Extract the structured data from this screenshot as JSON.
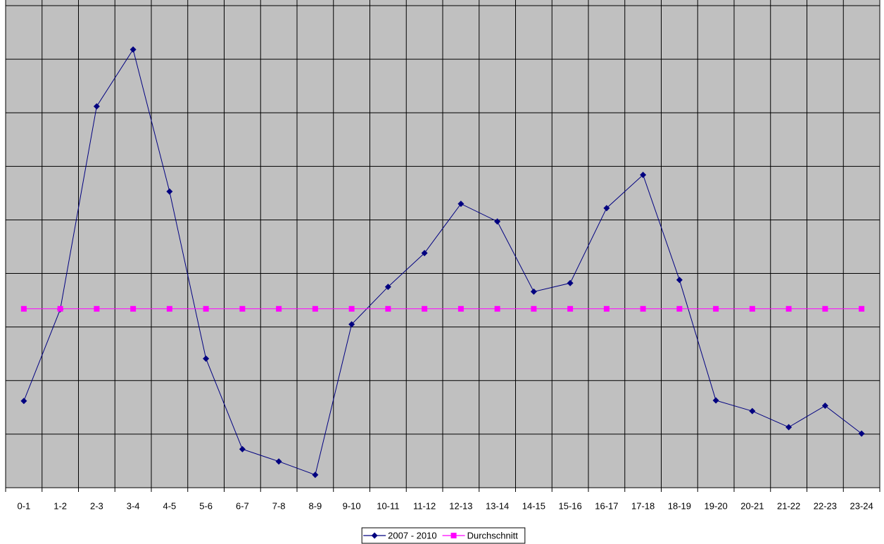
{
  "chart_data": {
    "type": "line",
    "categories": [
      "0-1",
      "1-2",
      "2-3",
      "3-4",
      "4-5",
      "5-6",
      "6-7",
      "7-8",
      "8-9",
      "9-10",
      "10-11",
      "11-12",
      "12-13",
      "13-14",
      "14-15",
      "15-16",
      "16-17",
      "17-18",
      "18-19",
      "19-20",
      "20-21",
      "21-22",
      "22-23",
      "23-24"
    ],
    "series": [
      {
        "name": "2007 - 2010",
        "color": "#000080",
        "marker": "diamond",
        "values": [
          1.62,
          3.33,
          7.12,
          8.18,
          5.53,
          2.41,
          0.72,
          0.49,
          0.24,
          3.05,
          3.75,
          4.38,
          5.3,
          4.97,
          3.66,
          3.82,
          5.22,
          5.84,
          3.88,
          1.63,
          1.43,
          1.13,
          1.53,
          1.01
        ]
      },
      {
        "name": "Durchschnitt",
        "color": "#ff00ff",
        "marker": "square",
        "values": [
          3.34,
          3.34,
          3.34,
          3.34,
          3.34,
          3.34,
          3.34,
          3.34,
          3.34,
          3.34,
          3.34,
          3.34,
          3.34,
          3.34,
          3.34,
          3.34,
          3.34,
          3.34,
          3.34,
          3.34,
          3.34,
          3.34,
          3.34,
          3.34
        ]
      }
    ],
    "ylim": [
      0,
      9
    ],
    "yticks": [
      0,
      1,
      2,
      3,
      4,
      5,
      6,
      7,
      8,
      9
    ],
    "grid": true,
    "legend": "bottom",
    "background": "#c0c0c0"
  }
}
